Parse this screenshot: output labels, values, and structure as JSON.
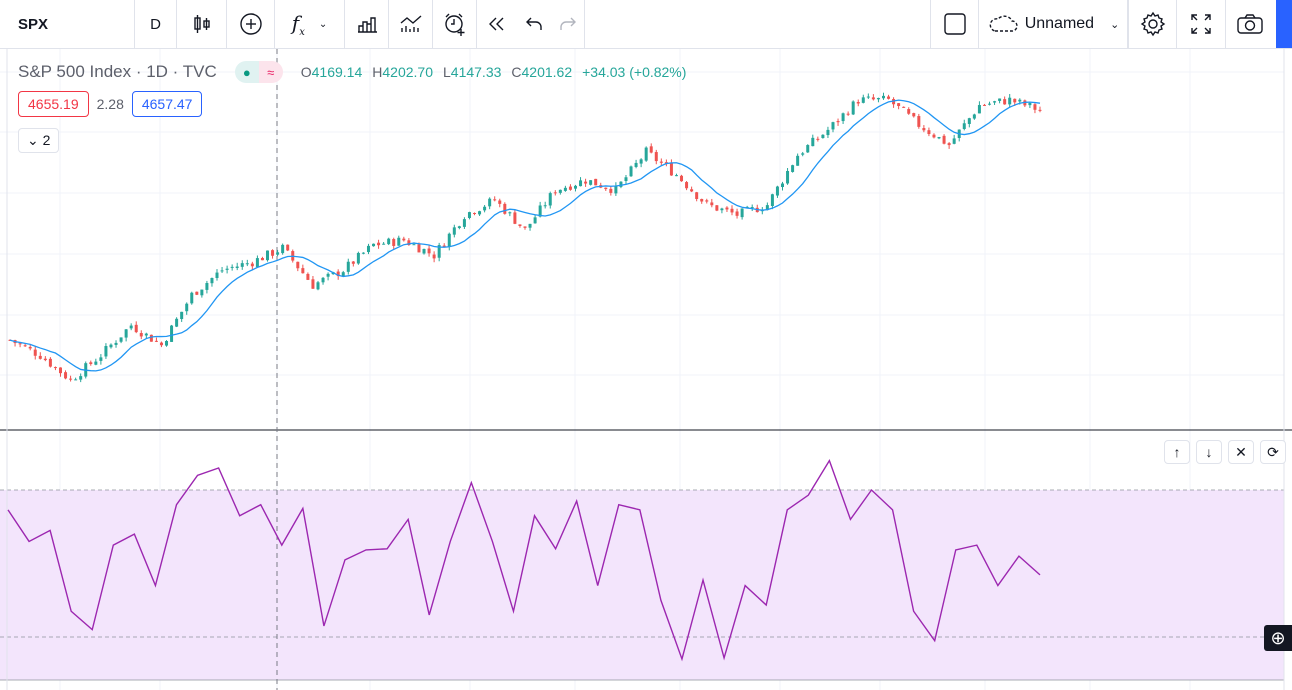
{
  "toolbar": {
    "symbol": "SPX",
    "interval": "D",
    "layout_name": "Unnamed",
    "icons": [
      "candles-icon",
      "add-compare-icon",
      "indicators-icon",
      "templates-icon",
      "bar-chart-icon",
      "alert-icon",
      "replay-icon",
      "undo-icon",
      "redo-icon",
      "square-icon",
      "cloud-icon",
      "gear-icon",
      "fullscreen-icon",
      "camera-icon"
    ]
  },
  "legend": {
    "title": "S&P 500 Index · 1D · TVC",
    "o_label": "O",
    "o": "4169.14",
    "h_label": "H",
    "h": "4202.70",
    "l_label": "L",
    "l": "4147.33",
    "c_label": "C",
    "c": "4201.62",
    "change": "+34.03 (+0.82%)",
    "ma_value_1": "4655.19",
    "ma_value_2": "2.28",
    "ma_value_3": "4657.47",
    "collapsed_count": "2"
  },
  "colors": {
    "up": "#26a69a",
    "down": "#ef5350",
    "ma": "#2196f3",
    "rsi": "#9c27b0",
    "rsi_band": "#f3e5fc",
    "accent": "#2962ff"
  },
  "chart_data": [
    {
      "type": "candlestick",
      "series": [
        {
          "name": "",
          "values": [
            3890,
            3843,
            3766,
            3843,
            3936,
            3874,
            4030,
            4107,
            4132,
            4175,
            4060,
            4107,
            4185,
            4200,
            4153,
            4278,
            4324,
            4231,
            4355,
            4386,
            4355,
            4473,
            4402,
            4309,
            4278,
            4309,
            4464,
            4541,
            4634,
            4634,
            4557,
            4495,
            4618,
            4634,
            4603
          ]
        }
      ]
    },
    {
      "type": "line",
      "ylim": [
        0,
        100
      ],
      "bands": [
        30,
        70
      ],
      "series": [
        {
          "name": "",
          "values": [
            64.6,
            56,
            59,
            37,
            32,
            55,
            58,
            44,
            66,
            74,
            76,
            63,
            66,
            55,
            65,
            33,
            51,
            53.7,
            54,
            62,
            36,
            56,
            72,
            56,
            37,
            63,
            54,
            67,
            44,
            66,
            64.6,
            40,
            24,
            45.5,
            24.3,
            44,
            38.7,
            64.6,
            68.6,
            78,
            62,
            70,
            64.6,
            37,
            29,
            53.7,
            55,
            44,
            52,
            46.9
          ]
        }
      ]
    }
  ]
}
